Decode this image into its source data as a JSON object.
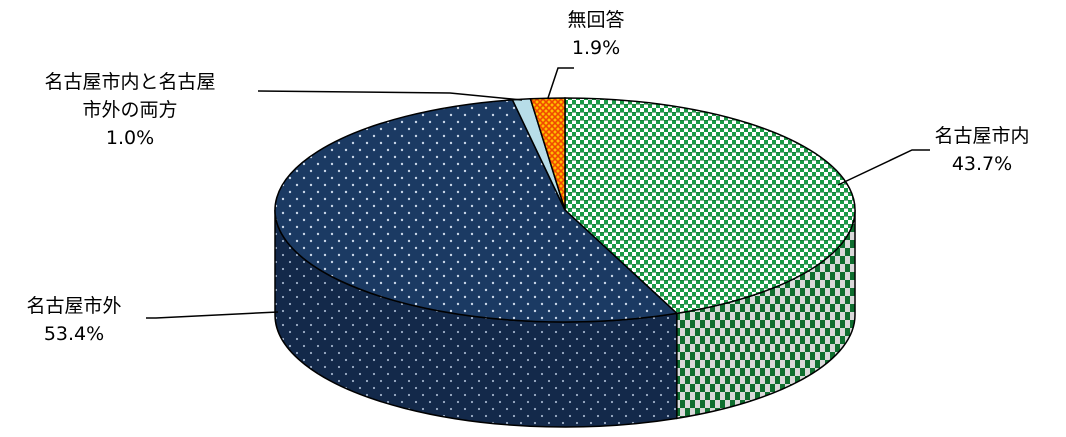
{
  "chart_data": {
    "type": "pie",
    "slices": [
      {
        "label": "名古屋市内",
        "value": 43.7,
        "display": "43.7%",
        "color": "#1a9a46",
        "pattern": "check"
      },
      {
        "label": "名古屋市外",
        "value": 53.4,
        "display": "53.4%",
        "color": "#1b3a63",
        "pattern": "dots"
      },
      {
        "label": "名古屋市内と名古屋\n市外の両方",
        "value": 1.0,
        "display": "1.0%",
        "color": "#b7dde8",
        "pattern": "solid"
      },
      {
        "label": "無回答",
        "value": 1.9,
        "display": "1.9%",
        "color": "#f06a0f",
        "pattern": "lattice"
      }
    ]
  }
}
